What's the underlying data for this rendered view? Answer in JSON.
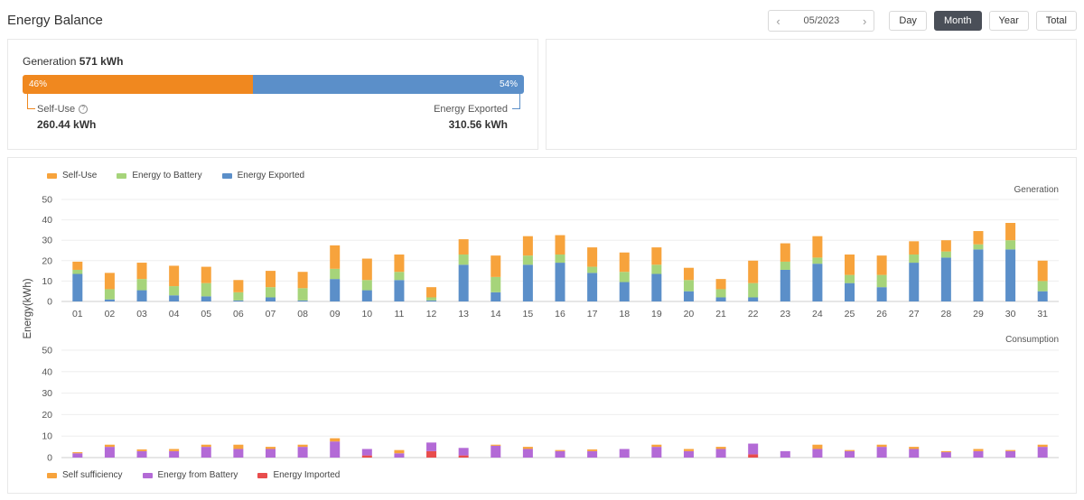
{
  "header": {
    "title": "Energy Balance"
  },
  "toolbar": {
    "month": "05/2023",
    "prev_icon": "chevron-left-icon",
    "next_icon": "chevron-right-icon",
    "buttons": [
      "Day",
      "Month",
      "Year",
      "Total"
    ],
    "active": "Month"
  },
  "summary": {
    "generation_label": "Generation",
    "generation_value": "571 kWh",
    "self_use_pct": "46%",
    "exported_pct": "54%",
    "self_use_fraction": 0.46,
    "self_use_label": "Self-Use",
    "self_use_value": "260.44 kWh",
    "exported_label": "Energy Exported",
    "exported_value": "310.56 kWh"
  },
  "colors": {
    "self_use": "#f7a33c",
    "battery": "#a6d47a",
    "exported": "#5b8fc9",
    "bar_self": "#f0881f",
    "battery_discharge": "#b36ad6",
    "imported": "#e84d4d"
  },
  "chart_data": [
    {
      "type": "bar",
      "stacked": true,
      "title": "Generation",
      "ylabel": "Energy(kWh)",
      "ylim": [
        0,
        50
      ],
      "yticks": [
        0,
        10,
        20,
        30,
        40,
        50
      ],
      "categories": [
        "01",
        "02",
        "03",
        "04",
        "05",
        "06",
        "07",
        "08",
        "09",
        "10",
        "11",
        "12",
        "13",
        "14",
        "15",
        "16",
        "17",
        "18",
        "19",
        "20",
        "21",
        "22",
        "23",
        "24",
        "25",
        "26",
        "27",
        "28",
        "29",
        "30",
        "31"
      ],
      "legend": "top-left",
      "series": [
        {
          "name": "Energy Exported",
          "color": "#5b8fc9",
          "values": [
            13.5,
            1,
            5.5,
            3,
            2.5,
            0.5,
            2,
            0.5,
            11,
            5.5,
            10.5,
            0.5,
            18,
            4.5,
            18,
            19,
            14,
            9.5,
            13.5,
            5,
            2,
            2,
            15.5,
            18.5,
            9,
            7,
            19,
            21.5,
            25.5,
            25.5,
            5
          ]
        },
        {
          "name": "Energy to Battery",
          "color": "#a6d47a",
          "values": [
            2,
            5,
            5.5,
            4.5,
            6.5,
            4,
            5,
            6,
            5,
            5,
            4,
            1.5,
            5,
            7.5,
            4.5,
            4,
            3,
            5,
            4.5,
            5.5,
            4,
            7,
            4,
            3,
            4,
            6,
            4,
            3,
            2.5,
            4.5,
            5
          ]
        },
        {
          "name": "Self-Use",
          "color": "#f7a33c",
          "values": [
            4,
            8,
            8,
            10,
            8,
            6,
            8,
            8,
            11.5,
            10.5,
            8.5,
            5,
            7.5,
            10.5,
            9.5,
            9.5,
            9.5,
            9.5,
            8.5,
            6,
            5,
            11,
            9,
            10.5,
            10,
            9.5,
            6.5,
            5.5,
            6.5,
            8.5,
            10
          ]
        }
      ]
    },
    {
      "type": "bar",
      "stacked": true,
      "title": "Consumption",
      "ylabel": "Energy(kWh)",
      "ylim": [
        0,
        50
      ],
      "yticks": [
        0,
        10,
        20,
        30,
        40,
        50
      ],
      "categories": [
        "01",
        "02",
        "03",
        "04",
        "05",
        "06",
        "07",
        "08",
        "09",
        "10",
        "11",
        "12",
        "13",
        "14",
        "15",
        "16",
        "17",
        "18",
        "19",
        "20",
        "21",
        "22",
        "23",
        "24",
        "25",
        "26",
        "27",
        "28",
        "29",
        "30",
        "31"
      ],
      "legend": "bottom-left",
      "series": [
        {
          "name": "Energy Imported",
          "color": "#e84d4d",
          "values": [
            0,
            0,
            0,
            0,
            0,
            0,
            0,
            0,
            0,
            1,
            0,
            3,
            1,
            0,
            0,
            0,
            0,
            0,
            0,
            0,
            0,
            1.5,
            0,
            0,
            0,
            0,
            0,
            0,
            0,
            0,
            0
          ]
        },
        {
          "name": "Energy from Battery",
          "color": "#b36ad6",
          "values": [
            2,
            5,
            3,
            3,
            5,
            4,
            4,
            5,
            7.5,
            3,
            2,
            4,
            3.5,
            5.5,
            4,
            3,
            3,
            4,
            5,
            3,
            4,
            5,
            3,
            4,
            3,
            5,
            4,
            2.5,
            3,
            3,
            5
          ]
        },
        {
          "name": "Self sufficiency",
          "color": "#f7a33c",
          "values": [
            0.5,
            1,
            0.8,
            1,
            1,
            2,
            1,
            1,
            1.5,
            0,
            1.5,
            0,
            0,
            0.5,
            1,
            0.5,
            0.8,
            0,
            1,
            1,
            1,
            0,
            0,
            2,
            0.5,
            1,
            1,
            0.5,
            1,
            0.5,
            1
          ]
        }
      ]
    }
  ]
}
